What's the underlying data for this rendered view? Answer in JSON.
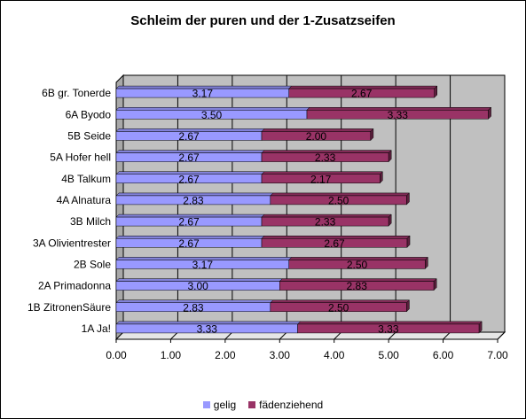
{
  "chart_data": {
    "type": "bar",
    "orientation": "horizontal",
    "stacked": true,
    "title": "Schleim der puren und der 1-Zusatzseifen",
    "categories": [
      "6B gr. Tonerde",
      "6A Byodo",
      "5B Seide",
      "5A Hofer hell",
      "4B Talkum",
      "4A Alnatura",
      "3B Milch",
      "3A Olivientrester",
      "2B Sole",
      "2A Primadonna",
      "1B ZitronenSäure",
      "1A Ja!"
    ],
    "series": [
      {
        "name": "gelig",
        "color": "#9999ff",
        "values": [
          3.17,
          3.5,
          2.67,
          2.67,
          2.67,
          2.83,
          2.67,
          2.67,
          3.17,
          3.0,
          2.83,
          3.33
        ],
        "labels": [
          "3.17",
          "3.50",
          "2.67",
          "2.67",
          "2.67",
          "2.83",
          "2.67",
          "2.67",
          "3.17",
          "3.00",
          "2.83",
          "3.33"
        ]
      },
      {
        "name": "fädenziehend",
        "color": "#993366",
        "values": [
          2.67,
          3.33,
          2.0,
          2.33,
          2.17,
          2.5,
          2.33,
          2.67,
          2.5,
          2.83,
          2.5,
          3.33
        ],
        "labels": [
          "2.67",
          "3.33",
          "2.00",
          "2.33",
          "2.17",
          "2.50",
          "2.33",
          "2.67",
          "2.50",
          "2.83",
          "2.50",
          "3.33"
        ]
      }
    ],
    "xlim": [
      0,
      7
    ],
    "xticks": [
      0,
      1,
      2,
      3,
      4,
      5,
      6,
      7
    ],
    "xtick_labels": [
      "0.00",
      "1.00",
      "2.00",
      "3.00",
      "4.00",
      "5.00",
      "6.00",
      "7.00"
    ],
    "grid": true,
    "legend_position": "bottom",
    "plot_background": "#c0c0c0"
  }
}
